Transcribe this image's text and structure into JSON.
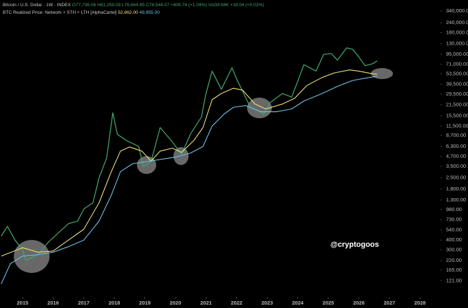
{
  "chart_data": {
    "type": "line",
    "title": "Bitcoin / U.S. Dollar · 1W · INDEX",
    "annotations": [
      "O77,736.06",
      "H81,259.09",
      "L76,664.85",
      "C78,544.07",
      "+809.74 (+1.04%)",
      "Vol39.68K",
      "+18.04 (+0.02%)",
      "@cryptogoos"
    ],
    "log_y": true,
    "grid": false,
    "xlim": [
      2014.26,
      2028.67
    ],
    "xticks": [
      2015,
      2016,
      2017,
      2018,
      2019,
      2020,
      2021,
      2022,
      2023,
      2024,
      2025,
      2026,
      2027,
      2028
    ],
    "ylim": [
      78,
      425000
    ],
    "yticks": [
      {
        "value": 340000,
        "label": "340,000.00"
      },
      {
        "value": 240000,
        "label": "240,000.00"
      },
      {
        "value": 180000,
        "label": "180,000.00"
      },
      {
        "value": 130000,
        "label": "130,000.00"
      },
      {
        "value": 95000,
        "label": "95,000.00"
      },
      {
        "value": 71000,
        "label": "71,000.00"
      },
      {
        "value": 53500,
        "label": "53,500.00"
      },
      {
        "value": 39500,
        "label": "39,500.00"
      },
      {
        "value": 29500,
        "label": "29,500.00"
      },
      {
        "value": 21500,
        "label": "21,500.00"
      },
      {
        "value": 15500,
        "label": "15,500.00"
      },
      {
        "value": 11500,
        "label": "11,500.00"
      },
      {
        "value": 8700,
        "label": "8,700.00"
      },
      {
        "value": 6300,
        "label": "6,300.00"
      },
      {
        "value": 4700,
        "label": "4,700.00"
      },
      {
        "value": 3500,
        "label": "3,500.00"
      },
      {
        "value": 2500,
        "label": "2,500.00"
      },
      {
        "value": 1800,
        "label": "1,800.00"
      },
      {
        "value": 1300,
        "label": "1,300.00"
      },
      {
        "value": 980,
        "label": "980.00"
      },
      {
        "value": 730,
        "label": "730.00"
      },
      {
        "value": 540,
        "label": "540.00"
      },
      {
        "value": 400,
        "label": "400.00"
      },
      {
        "value": 300,
        "label": "300.00"
      },
      {
        "value": 220,
        "label": "220.00"
      },
      {
        "value": 165,
        "label": "165.00"
      },
      {
        "value": 121,
        "label": "121.00"
      }
    ],
    "series": [
      {
        "color": "#3fa36b",
        "x": [
          2014.3,
          2014.5,
          2014.75,
          2015.0,
          2015.1,
          2015.5,
          2015.85,
          2016.0,
          2016.5,
          2016.8,
          2017.0,
          2017.3,
          2017.5,
          2017.75,
          2017.95,
          2018.1,
          2018.4,
          2018.8,
          2018.95,
          2019.2,
          2019.5,
          2019.9,
          2020.2,
          2020.5,
          2020.85,
          2020.99,
          2021.2,
          2021.5,
          2021.85,
          2022.0,
          2022.45,
          2022.9,
          2023.1,
          2023.5,
          2023.8,
          2024.0,
          2024.2,
          2024.6,
          2024.85,
          2025.1,
          2025.3,
          2025.6,
          2025.8,
          2026.0,
          2026.2,
          2026.45,
          2026.6
        ],
        "values": [
          450,
          600,
          400,
          300,
          220,
          260,
          380,
          430,
          650,
          700,
          1000,
          1200,
          2500,
          4500,
          17000,
          9000,
          7500,
          6300,
          3500,
          4000,
          11000,
          7200,
          5000,
          9200,
          15000,
          29000,
          58000,
          34000,
          64000,
          46000,
          20000,
          16500,
          23000,
          30000,
          27000,
          43000,
          70000,
          58000,
          95000,
          97000,
          80000,
          115000,
          110000,
          88000,
          68000,
          72000,
          78544.07
        ]
      },
      {
        "name": "BTC Realized Price: Network + STH + LTH [AlphaCartel]",
        "color": "#f3e27a",
        "last_label": "52,862.00",
        "x": [
          2014.3,
          2015.0,
          2015.5,
          2016.0,
          2016.5,
          2017.0,
          2017.5,
          2017.9,
          2018.2,
          2018.5,
          2018.9,
          2019.2,
          2019.5,
          2019.9,
          2020.2,
          2020.6,
          2020.9,
          2021.2,
          2021.5,
          2021.9,
          2022.2,
          2022.6,
          2022.95,
          2023.5,
          2023.9,
          2024.3,
          2024.8,
          2025.2,
          2025.7,
          2026.0,
          2026.4,
          2026.6
        ],
        "values": [
          250,
          320,
          280,
          290,
          400,
          550,
          1200,
          3000,
          5500,
          6200,
          5500,
          4100,
          5500,
          6000,
          5300,
          7500,
          11000,
          25000,
          30000,
          35000,
          33000,
          22000,
          19000,
          22000,
          26000,
          38000,
          48000,
          55000,
          60000,
          58000,
          54000,
          52862
        ]
      },
      {
        "color": "#6ec3e6",
        "last_label": "49,955.00",
        "x": [
          2014.3,
          2014.6,
          2015.0,
          2015.5,
          2016.0,
          2016.5,
          2017.0,
          2017.5,
          2017.9,
          2018.2,
          2018.6,
          2019.0,
          2019.5,
          2020.0,
          2020.5,
          2020.9,
          2021.2,
          2021.6,
          2021.9,
          2022.3,
          2022.8,
          2023.3,
          2023.8,
          2024.2,
          2024.8,
          2025.3,
          2025.8,
          2026.2,
          2026.6
        ],
        "values": [
          110,
          200,
          250,
          260,
          280,
          330,
          400,
          700,
          1500,
          3000,
          3800,
          4000,
          4300,
          4600,
          5200,
          6300,
          11500,
          16500,
          20000,
          21000,
          17500,
          17500,
          19000,
          24000,
          30000,
          37000,
          44000,
          47000,
          49955
        ]
      }
    ]
  }
}
